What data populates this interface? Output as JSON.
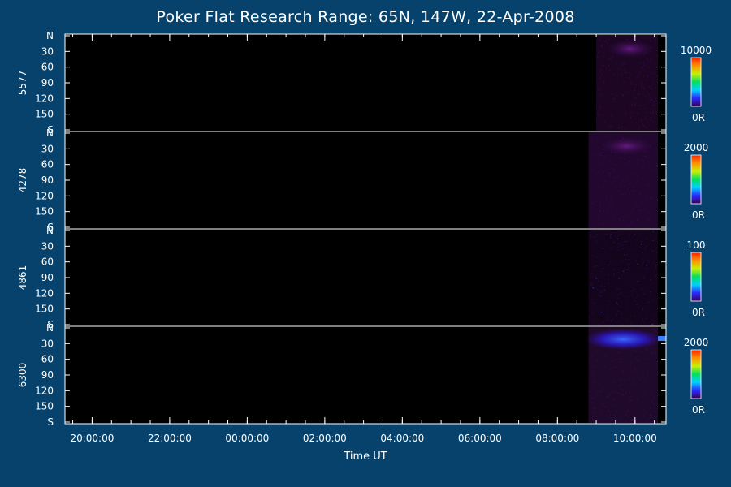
{
  "chart_data": {
    "type": "heatmap",
    "title": "Poker Flat Research Range: 65N, 147W, 22-Apr-2008",
    "xlabel": "Time UT",
    "x_ticks": [
      "20:00:00",
      "22:00:00",
      "00:00:00",
      "02:00:00",
      "04:00:00",
      "06:00:00",
      "08:00:00",
      "10:00:00"
    ],
    "x_range_hours": [
      19.3,
      34.8
    ],
    "y_ticks": [
      "N",
      "30",
      "60",
      "90",
      "120",
      "150",
      "S"
    ],
    "y_range_deg": [
      0,
      180
    ],
    "panels": [
      {
        "wavelength": "5577",
        "scale_max": "10000",
        "scale_min": "0R",
        "data_start_hours": 33.0
      },
      {
        "wavelength": "4278",
        "scale_max": "2000",
        "scale_min": "0R",
        "data_start_hours": 32.8
      },
      {
        "wavelength": "4861",
        "scale_max": "100",
        "scale_min": "0R",
        "data_start_hours": 32.8
      },
      {
        "wavelength": "6300",
        "scale_max": "2000",
        "scale_min": "0R",
        "data_start_hours": 32.8
      }
    ],
    "colorbar": [
      "#3a005a",
      "#2a2aff",
      "#00d0ff",
      "#00e060",
      "#c8f000",
      "#ff9000",
      "#ff2000"
    ]
  }
}
